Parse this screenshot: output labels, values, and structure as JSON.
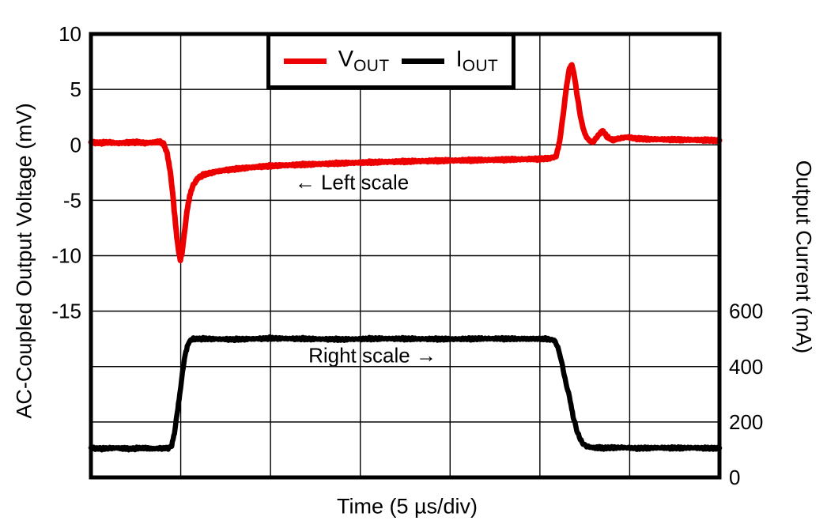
{
  "chart_data": {
    "type": "line",
    "title": "",
    "background": "#FFFFFF",
    "grid": "on",
    "x_axis": {
      "title": "Time (5 µs/div)",
      "us_per_div": 5,
      "divisions": 7,
      "range_us": [
        0,
        35
      ],
      "tick_labels_shown": false
    },
    "left_axis": {
      "title": "AC-Coupled Output Voltage (mV)",
      "range_mV": [
        -30,
        10
      ],
      "grid_step_mV": 5,
      "ticks": [
        {
          "v": 10,
          "label": "10"
        },
        {
          "v": 5,
          "label": "5"
        },
        {
          "v": 0,
          "label": "0"
        },
        {
          "v": -5,
          "label": "-5"
        },
        {
          "v": -10,
          "label": "-10"
        },
        {
          "v": -15,
          "label": "-15"
        }
      ]
    },
    "right_axis": {
      "title": "Output Current (mA)",
      "range_mA": [
        0,
        1600
      ],
      "grid_step_mA": 200,
      "ticks": [
        {
          "v": 600,
          "label": "600"
        },
        {
          "v": 400,
          "label": "400"
        },
        {
          "v": 200,
          "label": "200"
        },
        {
          "v": 0,
          "label": "0"
        }
      ]
    },
    "legend": [
      {
        "main": "V",
        "sub": "OUT",
        "color": "#ED0000"
      },
      {
        "main": "I",
        "sub": "OUT",
        "color": "#000000"
      }
    ],
    "annotations": [
      {
        "text": "← Left scale",
        "x_us": 14.5,
        "y_mV": -3.5
      },
      {
        "text": "Right scale →",
        "x_us": 15.7,
        "y_mA": 440
      }
    ],
    "series": [
      {
        "name": "VOUT",
        "axis": "left",
        "units": "mV",
        "color": "#ED0000",
        "stroke_width": 7,
        "noise": 0.12,
        "points": [
          [
            0,
            0.2
          ],
          [
            0.5,
            0.18
          ],
          [
            1,
            0.23
          ],
          [
            1.5,
            0.15
          ],
          [
            2,
            0.2
          ],
          [
            2.5,
            0.24
          ],
          [
            3,
            0.17
          ],
          [
            3.5,
            0.22
          ],
          [
            3.85,
            0.26
          ],
          [
            4.05,
            0.1
          ],
          [
            4.25,
            -0.8
          ],
          [
            4.45,
            -2.8
          ],
          [
            4.6,
            -5.2
          ],
          [
            4.75,
            -7.8
          ],
          [
            4.9,
            -9.8
          ],
          [
            4.98,
            -10.35
          ],
          [
            5.06,
            -9.9
          ],
          [
            5.2,
            -8.0
          ],
          [
            5.35,
            -6.0
          ],
          [
            5.5,
            -4.6
          ],
          [
            5.65,
            -3.8
          ],
          [
            5.8,
            -3.35
          ],
          [
            6.0,
            -2.95
          ],
          [
            6.25,
            -2.72
          ],
          [
            6.5,
            -2.6
          ],
          [
            7.0,
            -2.4
          ],
          [
            7.5,
            -2.28
          ],
          [
            8.5,
            -2.1
          ],
          [
            9.5,
            -1.95
          ],
          [
            10.5,
            -1.86
          ],
          [
            11.5,
            -1.8
          ],
          [
            12.5,
            -1.74
          ],
          [
            13.5,
            -1.68
          ],
          [
            15,
            -1.6
          ],
          [
            16.5,
            -1.53
          ],
          [
            18,
            -1.48
          ],
          [
            19.5,
            -1.43
          ],
          [
            21,
            -1.39
          ],
          [
            22.5,
            -1.35
          ],
          [
            24,
            -1.3
          ],
          [
            25,
            -1.27
          ],
          [
            25.5,
            -1.23
          ],
          [
            25.9,
            -1.05
          ],
          [
            26.1,
            0.3
          ],
          [
            26.3,
            2.8
          ],
          [
            26.5,
            5.5
          ],
          [
            26.65,
            6.9
          ],
          [
            26.78,
            7.25
          ],
          [
            26.92,
            6.2
          ],
          [
            27.1,
            4.2
          ],
          [
            27.3,
            2.2
          ],
          [
            27.5,
            1.0
          ],
          [
            27.7,
            0.45
          ],
          [
            27.95,
            0.22
          ],
          [
            28.2,
            0.75
          ],
          [
            28.48,
            1.3
          ],
          [
            28.75,
            0.7
          ],
          [
            29.05,
            0.42
          ],
          [
            29.35,
            0.55
          ],
          [
            29.85,
            0.7
          ],
          [
            30.3,
            0.58
          ],
          [
            30.8,
            0.52
          ],
          [
            31.5,
            0.5
          ],
          [
            32.5,
            0.47
          ],
          [
            33.5,
            0.45
          ],
          [
            34.5,
            0.42
          ],
          [
            35,
            0.4
          ]
        ]
      },
      {
        "name": "IOUT",
        "axis": "right",
        "units": "mA",
        "color": "#000000",
        "stroke_width": 6.5,
        "noise": 5,
        "points": [
          [
            0,
            105
          ],
          [
            0.7,
            104
          ],
          [
            1.4,
            107
          ],
          [
            2.1,
            103
          ],
          [
            2.8,
            106
          ],
          [
            3.5,
            104
          ],
          [
            4.0,
            105
          ],
          [
            4.3,
            106
          ],
          [
            4.5,
            115
          ],
          [
            4.65,
            160
          ],
          [
            4.8,
            230
          ],
          [
            4.95,
            300
          ],
          [
            5.1,
            380
          ],
          [
            5.25,
            445
          ],
          [
            5.4,
            480
          ],
          [
            5.55,
            495
          ],
          [
            5.7,
            500
          ],
          [
            6.5,
            500
          ],
          [
            8,
            498
          ],
          [
            10,
            502
          ],
          [
            12,
            500
          ],
          [
            14,
            498
          ],
          [
            16,
            501
          ],
          [
            18,
            500
          ],
          [
            20,
            499
          ],
          [
            22,
            501
          ],
          [
            24,
            500
          ],
          [
            25.3,
            500
          ],
          [
            25.8,
            495
          ],
          [
            26.0,
            470
          ],
          [
            26.2,
            420
          ],
          [
            26.45,
            340
          ],
          [
            26.65,
            290
          ],
          [
            26.85,
            220
          ],
          [
            27.1,
            160
          ],
          [
            27.35,
            125
          ],
          [
            27.6,
            112
          ],
          [
            27.9,
            108
          ],
          [
            28.5,
            106
          ],
          [
            29.5,
            108
          ],
          [
            30.5,
            105
          ],
          [
            31.5,
            107
          ],
          [
            32.5,
            106
          ],
          [
            33.5,
            107
          ],
          [
            34.5,
            105
          ],
          [
            35,
            106
          ]
        ]
      }
    ]
  }
}
